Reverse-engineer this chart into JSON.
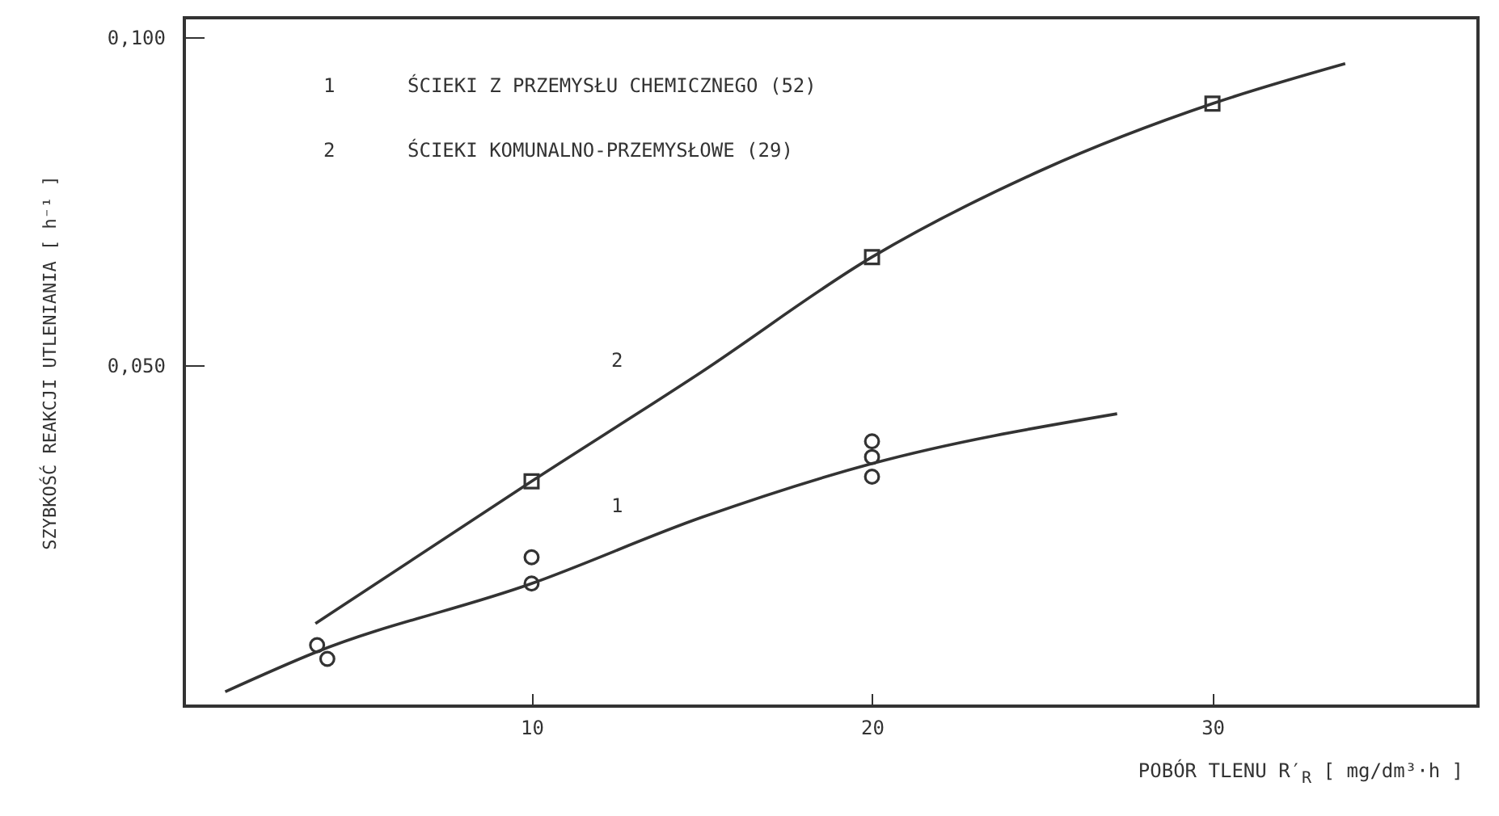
{
  "chart_data": {
    "type": "line",
    "xlabel": "POBÓR TLENU  R′$_{R}$   [ mg/dm³·h ]",
    "ylabel": "SZYBKOŚĆ REAKCJI UTLENIANIA   [ h⁻¹ ]",
    "xlim": [
      -0.2,
      37.8
    ],
    "xticks": [
      10,
      20,
      30
    ],
    "ylim": [
      -0.002,
      0.103
    ],
    "yticks": [
      {
        "value": 0.05,
        "label": "0,050"
      },
      {
        "value": 0.1,
        "label": "0,100"
      }
    ],
    "grid": false,
    "series": [
      {
        "type": "scatter",
        "marker": "circle",
        "color": "#333333",
        "x": [
          3.7,
          4.0,
          10,
          10,
          20,
          20,
          20
        ],
        "values": [
          0.0073,
          0.0052,
          0.0207,
          0.0167,
          0.0384,
          0.036,
          0.033
        ]
      },
      {
        "type": "scatter",
        "marker": "square",
        "color": "#333333",
        "x": [
          10,
          20,
          30
        ],
        "values": [
          0.0323,
          0.0665,
          0.0899
        ]
      },
      {
        "marker": "none",
        "color": "#333333",
        "x": [
          1.0,
          3.65,
          10,
          15,
          20,
          27.2
        ],
        "values": [
          0.0002,
          0.0062,
          0.0167,
          0.0268,
          0.035,
          0.0426
        ]
      },
      {
        "marker": "none",
        "color": "#333333",
        "x": [
          3.65,
          10,
          15,
          20,
          25,
          30,
          33.9
        ],
        "values": [
          0.0106,
          0.0323,
          0.049,
          0.0665,
          0.0798,
          0.0899,
          0.096
        ]
      }
    ],
    "annotations": [
      "1",
      "ŚCIEKI Z PRZEMYSŁU CHEMICZNEGO (52)",
      "2",
      "ŚCIEKI KOMUNALNO-PRZEMYSŁOWE (29)",
      "1",
      "2"
    ]
  }
}
